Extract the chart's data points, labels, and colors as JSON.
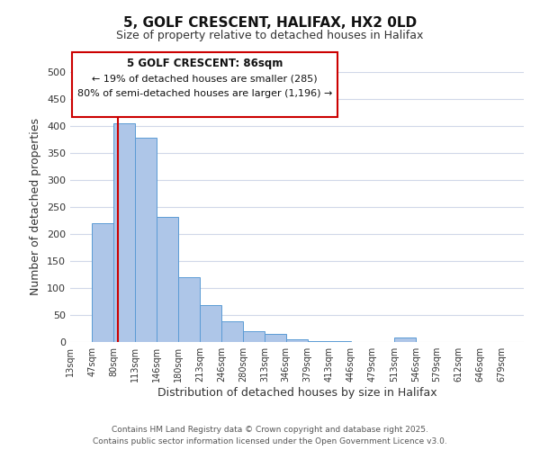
{
  "title": "5, GOLF CRESCENT, HALIFAX, HX2 0LD",
  "subtitle": "Size of property relative to detached houses in Halifax",
  "xlabel": "Distribution of detached houses by size in Halifax",
  "ylabel": "Number of detached properties",
  "bin_edges": [
    13,
    47,
    80,
    113,
    146,
    180,
    213,
    246,
    280,
    313,
    346,
    379,
    413,
    446,
    479,
    513,
    546,
    579,
    612,
    646,
    679
  ],
  "bar_heights": [
    0,
    220,
    405,
    378,
    232,
    120,
    68,
    38,
    20,
    15,
    5,
    2,
    2,
    0,
    0,
    8,
    0,
    0,
    0,
    0
  ],
  "bar_color": "#aec6e8",
  "bar_edge_color": "#5b9bd5",
  "red_line_x": 86,
  "red_line_color": "#cc0000",
  "ylim": [
    0,
    500
  ],
  "annotation_title": "5 GOLF CRESCENT: 86sqm",
  "annotation_line1": "← 19% of detached houses are smaller (285)",
  "annotation_line2": "80% of semi-detached houses are larger (1,196) →",
  "annotation_box_color": "#ffffff",
  "annotation_box_edge": "#cc0000",
  "tick_labels": [
    "13sqm",
    "47sqm",
    "80sqm",
    "113sqm",
    "146sqm",
    "180sqm",
    "213sqm",
    "246sqm",
    "280sqm",
    "313sqm",
    "346sqm",
    "379sqm",
    "413sqm",
    "446sqm",
    "479sqm",
    "513sqm",
    "546sqm",
    "579sqm",
    "612sqm",
    "646sqm",
    "679sqm"
  ],
  "footer_line1": "Contains HM Land Registry data © Crown copyright and database right 2025.",
  "footer_line2": "Contains public sector information licensed under the Open Government Licence v3.0.",
  "background_color": "#ffffff",
  "grid_color": "#d0d8e8"
}
